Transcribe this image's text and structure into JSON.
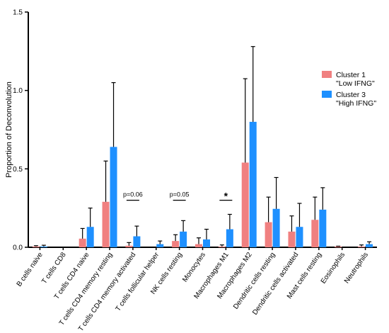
{
  "chart_data": {
    "type": "bar",
    "ylabel": "Proportion of Deconvolution",
    "ylim": [
      0,
      1.5
    ],
    "yticks": [
      0,
      0.5,
      1.0,
      1.5
    ],
    "ytick_labels": [
      "0.0",
      "0.5",
      "1.0",
      "1.5"
    ],
    "categories": [
      "B cells naive",
      "T cells CD8",
      "T cells CD4 naive",
      "T cells CD4 memory resting",
      "T cells CD4 memory activated",
      "T cells follicular helper",
      "NK cells resting",
      "Monocytes",
      "Macrophages M1",
      "Macrophages M2",
      "Dendritic cells resting",
      "Dendritic cells activated",
      "Mast cells resting",
      "Eosinophils",
      "Neutrophils"
    ],
    "series": [
      {
        "name": "Cluster 1\n\"Low IFNG\"",
        "color": "#F08080",
        "values": [
          0.005,
          0.0,
          0.055,
          0.29,
          0.01,
          0.0,
          0.04,
          0.02,
          0.005,
          0.54,
          0.16,
          0.1,
          0.175,
          0.005,
          0.005
        ],
        "errors": [
          0.005,
          0.0,
          0.065,
          0.26,
          0.02,
          0.0,
          0.04,
          0.04,
          0.01,
          0.535,
          0.16,
          0.1,
          0.145,
          0.002,
          0.01
        ]
      },
      {
        "name": "Cluster 3\n\"High IFNG\"",
        "color": "#1E90FF",
        "values": [
          0.005,
          0.0,
          0.13,
          0.64,
          0.07,
          0.02,
          0.1,
          0.05,
          0.115,
          0.8,
          0.245,
          0.13,
          0.24,
          0.0,
          0.02
        ],
        "errors": [
          0.008,
          0.0,
          0.12,
          0.41,
          0.065,
          0.02,
          0.07,
          0.065,
          0.095,
          0.48,
          0.2,
          0.15,
          0.14,
          0.0,
          0.015
        ]
      }
    ],
    "annotations": [
      {
        "category": "T cells CD4 memory activated",
        "text": "p=0.06",
        "y": 0.3
      },
      {
        "category": "NK cells resting",
        "text": "p=0.05",
        "y": 0.3
      },
      {
        "category": "Macrophages M1",
        "text": "*",
        "y": 0.3
      }
    ],
    "legend_position": "right",
    "grid": false
  }
}
